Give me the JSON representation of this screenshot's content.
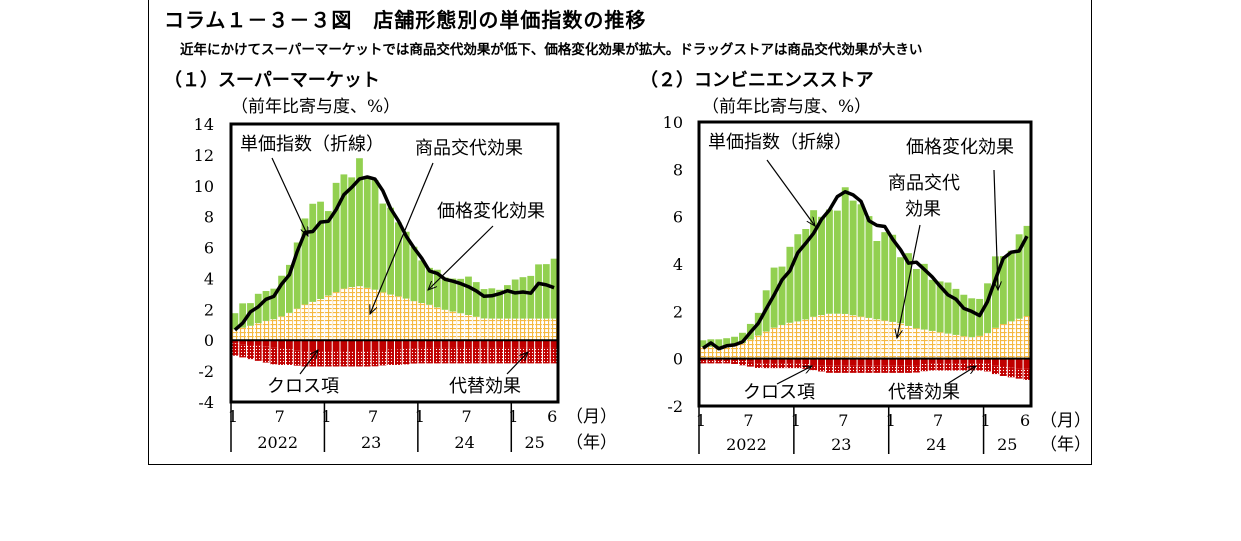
{
  "figure": {
    "title": "コラム１－３－３図　店舗形態別の単価指数の推移",
    "subtitle": "近年にかけてスーパーマーケットでは商品交代効果が低下、価格変化効果が拡大。ドラッグストアは商品交代効果が大きい"
  },
  "colors": {
    "price_change": "#92d050",
    "product_turnover": "#f5b942",
    "cross": "#c00000",
    "substitution": "#c00000",
    "index_line": "#000000"
  },
  "chart_data": [
    {
      "type": "bar",
      "title": "（１）スーパーマーケット",
      "ylabel": "（前年比寄与度、%）",
      "ylim": [
        -4,
        14
      ],
      "yticks": [
        "14",
        "12",
        "10",
        "8",
        "6",
        "4",
        "2",
        "0",
        "-2",
        "-4"
      ],
      "x_month_ticks": [
        "1",
        "7",
        "1",
        "7",
        "1",
        "7",
        "1",
        "6"
      ],
      "x_unit_month": "（月）",
      "x_year_labels": [
        "2022",
        "23",
        "24",
        "25"
      ],
      "x_unit_year": "（年）",
      "x_range": [
        "2022-01",
        "2025-06"
      ],
      "annotations": [
        "単価指数（折線）",
        "商品交代効果",
        "価格変化効果",
        "クロス項",
        "代替効果"
      ],
      "series": [
        {
          "name": "単価指数（折線）",
          "kind": "line",
          "values": [
            0.8,
            1.6,
            2.4,
            3.0,
            4.5,
            6.8,
            7.4,
            8.0,
            9.5,
            10.4,
            10.5,
            9.0,
            7.3,
            6.0,
            4.4,
            4.1,
            3.8,
            3.6,
            2.8,
            3.0,
            3.2,
            2.9,
            3.8,
            3.4
          ]
        },
        {
          "name": "価格変化効果",
          "kind": "stack",
          "values": [
            1.2,
            1.6,
            2.0,
            2.0,
            3.5,
            5.5,
            5.8,
            6.0,
            7.0,
            7.5,
            7.0,
            5.5,
            4.5,
            3.5,
            2.5,
            2.4,
            2.3,
            2.2,
            2.0,
            2.0,
            2.2,
            2.5,
            3.4,
            3.5
          ]
        },
        {
          "name": "商品交代効果",
          "kind": "stack",
          "values": [
            0.7,
            0.9,
            1.2,
            1.4,
            1.8,
            2.3,
            2.6,
            3.0,
            3.4,
            3.5,
            3.3,
            3.0,
            2.8,
            2.5,
            2.3,
            2.0,
            1.8,
            1.6,
            1.4,
            1.4,
            1.4,
            1.4,
            1.4,
            1.4
          ]
        },
        {
          "name": "クロス項",
          "kind": "stack",
          "values": [
            -0.2,
            -0.3,
            -0.4,
            -0.5,
            -0.6,
            -0.7,
            -0.7,
            -0.7,
            -0.7,
            -0.7,
            -0.7,
            -0.6,
            -0.6,
            -0.5,
            -0.5,
            -0.5,
            -0.5,
            -0.5,
            -0.5,
            -0.5,
            -0.5,
            -0.5,
            -0.5,
            -0.5
          ]
        },
        {
          "name": "代替効果",
          "kind": "stack",
          "values": [
            -0.8,
            -0.9,
            -1.0,
            -1.1,
            -1.0,
            -1.0,
            -1.0,
            -1.0,
            -1.0,
            -1.0,
            -1.0,
            -1.0,
            -1.0,
            -1.0,
            -1.0,
            -1.0,
            -1.0,
            -1.0,
            -1.0,
            -1.0,
            -1.0,
            -1.0,
            -1.0,
            -1.0
          ]
        }
      ]
    },
    {
      "type": "bar",
      "title": "（２）コンビニエンスストア",
      "ylabel": "（前年比寄与度、%）",
      "ylim": [
        -2,
        10
      ],
      "yticks": [
        "10",
        "8",
        "6",
        "4",
        "2",
        "0",
        "-2"
      ],
      "x_month_ticks": [
        "1",
        "7",
        "1",
        "7",
        "1",
        "7",
        "1",
        "6"
      ],
      "x_unit_month": "（月）",
      "x_year_labels": [
        "2022",
        "23",
        "24",
        "25"
      ],
      "x_unit_year": "（年）",
      "x_range": [
        "2022-01",
        "2025-06"
      ],
      "annotations": [
        "単価指数（折線）",
        "価格変化効果",
        "商品交代\n効果",
        "クロス項",
        "代替効果"
      ],
      "series": [
        {
          "name": "単価指数（折線）",
          "kind": "line",
          "values": [
            0.5,
            0.5,
            0.7,
            0.9,
            1.4,
            2.8,
            3.6,
            4.8,
            5.5,
            6.3,
            7.0,
            6.7,
            5.7,
            5.4,
            4.5,
            4.0,
            3.5,
            2.9,
            2.5,
            1.9,
            2.0,
            4.0,
            4.5,
            5.0
          ]
        },
        {
          "name": "価格変化効果",
          "kind": "stack",
          "values": [
            0.3,
            0.3,
            0.4,
            0.4,
            1.0,
            2.5,
            3.0,
            3.8,
            4.2,
            4.5,
            4.8,
            4.5,
            3.8,
            3.6,
            3.0,
            2.8,
            2.4,
            2.2,
            2.0,
            1.6,
            1.8,
            3.0,
            3.2,
            3.5
          ]
        },
        {
          "name": "商品交代効果",
          "kind": "stack",
          "values": [
            0.5,
            0.5,
            0.5,
            0.7,
            1.0,
            1.3,
            1.5,
            1.6,
            1.8,
            1.9,
            1.9,
            1.8,
            1.7,
            1.6,
            1.5,
            1.3,
            1.2,
            1.1,
            1.0,
            0.9,
            1.0,
            1.4,
            1.6,
            1.8
          ]
        },
        {
          "name": "クロス項",
          "kind": "stack",
          "values": [
            -0.1,
            -0.1,
            -0.1,
            -0.1,
            -0.2,
            -0.2,
            -0.2,
            -0.2,
            -0.3,
            -0.3,
            -0.3,
            -0.3,
            -0.3,
            -0.3,
            -0.3,
            -0.3,
            -0.2,
            -0.2,
            -0.2,
            -0.2,
            -0.2,
            -0.3,
            -0.4,
            -0.4
          ]
        },
        {
          "name": "代替効果",
          "kind": "stack",
          "values": [
            -0.1,
            -0.1,
            -0.1,
            -0.2,
            -0.2,
            -0.2,
            -0.2,
            -0.2,
            -0.2,
            -0.3,
            -0.3,
            -0.3,
            -0.3,
            -0.3,
            -0.3,
            -0.3,
            -0.3,
            -0.3,
            -0.3,
            -0.3,
            -0.3,
            -0.4,
            -0.4,
            -0.5
          ]
        }
      ]
    }
  ]
}
